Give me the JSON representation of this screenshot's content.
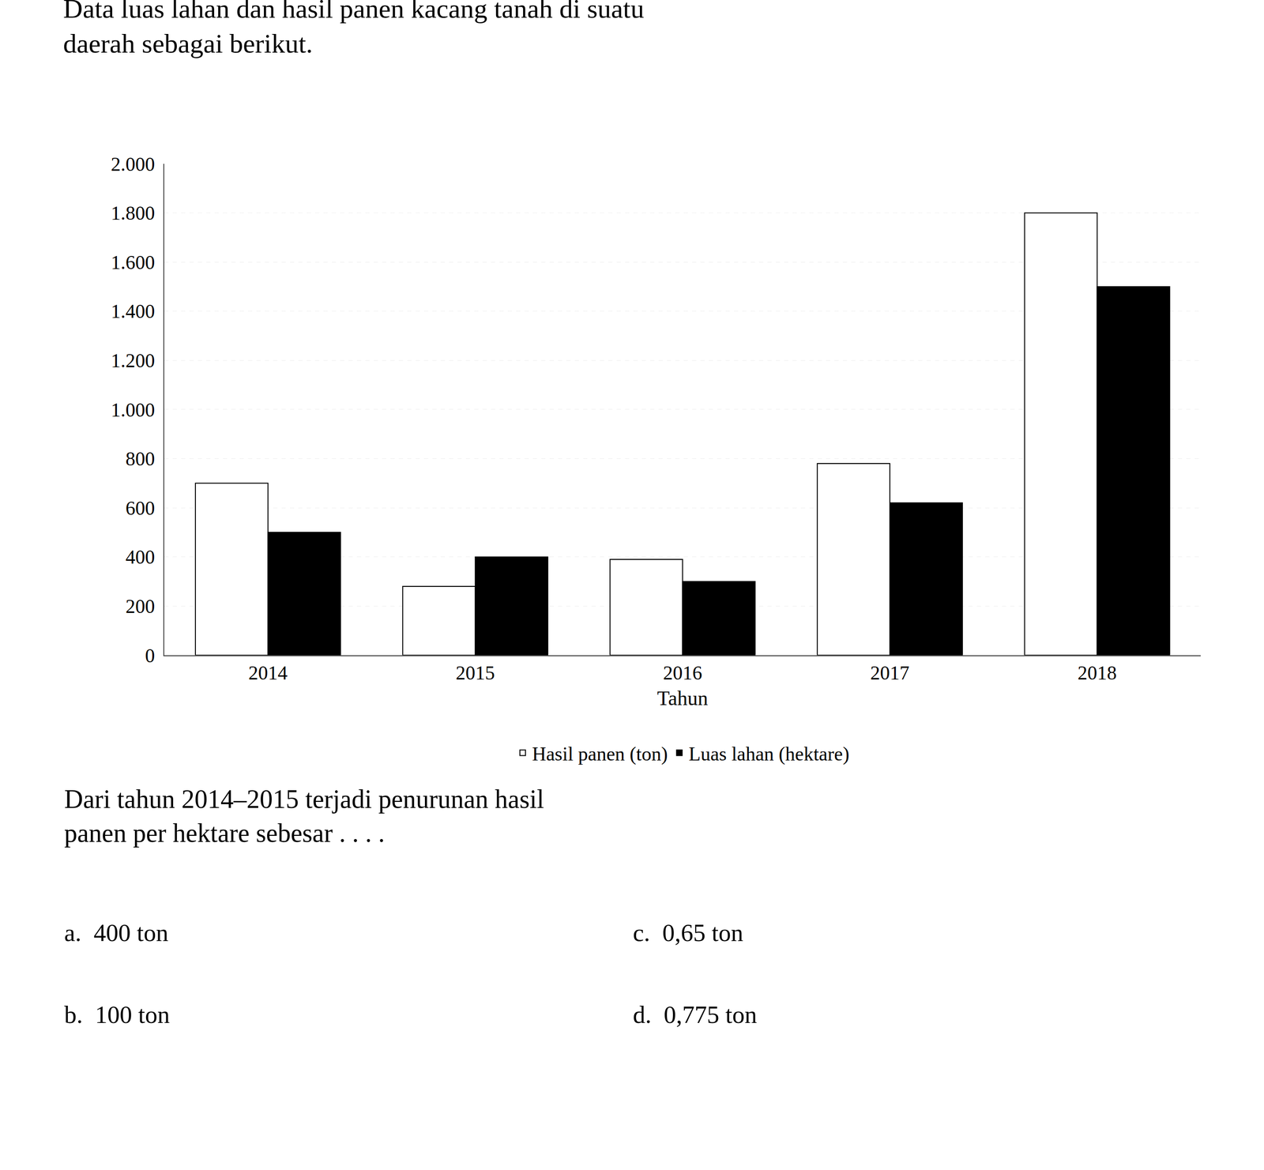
{
  "chart_data": {
    "type": "bar",
    "title": "Data luas lahan dan hasil panen kacang tanah di suatu\ndaerah sebagai berikut.",
    "categories": [
      "2014",
      "2015",
      "2016",
      "2017",
      "2018"
    ],
    "series": [
      {
        "name": "Hasil panen (ton)",
        "color": "#ffffff",
        "values": [
          700,
          280,
          390,
          780,
          1800
        ]
      },
      {
        "name": "Luas lahan (hektare)",
        "color": "#000000",
        "values": [
          500,
          400,
          300,
          620,
          1500
        ]
      }
    ],
    "x_label": "Tahun",
    "ylim": [
      0,
      2000
    ],
    "yticks": [
      0,
      200,
      400,
      600,
      800,
      {
        "value": 1000,
        "label": "1.000"
      },
      {
        "value": 1200,
        "label": "1.200"
      },
      {
        "value": 1400,
        "label": "1.400"
      },
      {
        "value": 1600,
        "label": "1.600"
      },
      {
        "value": 1800,
        "label": "1.800"
      },
      {
        "value": 2000,
        "label": "2.000"
      }
    ],
    "grid": true,
    "legend": "bottom",
    "annotations": [
      "Dari tahun 2014–2015 terjadi penurunan hasil\npanen per hektare sebesar . . . .",
      "a.  400 ton",
      "c.  0,65 ton",
      "b.  100 ton",
      "d.  0,775 ton"
    ]
  }
}
